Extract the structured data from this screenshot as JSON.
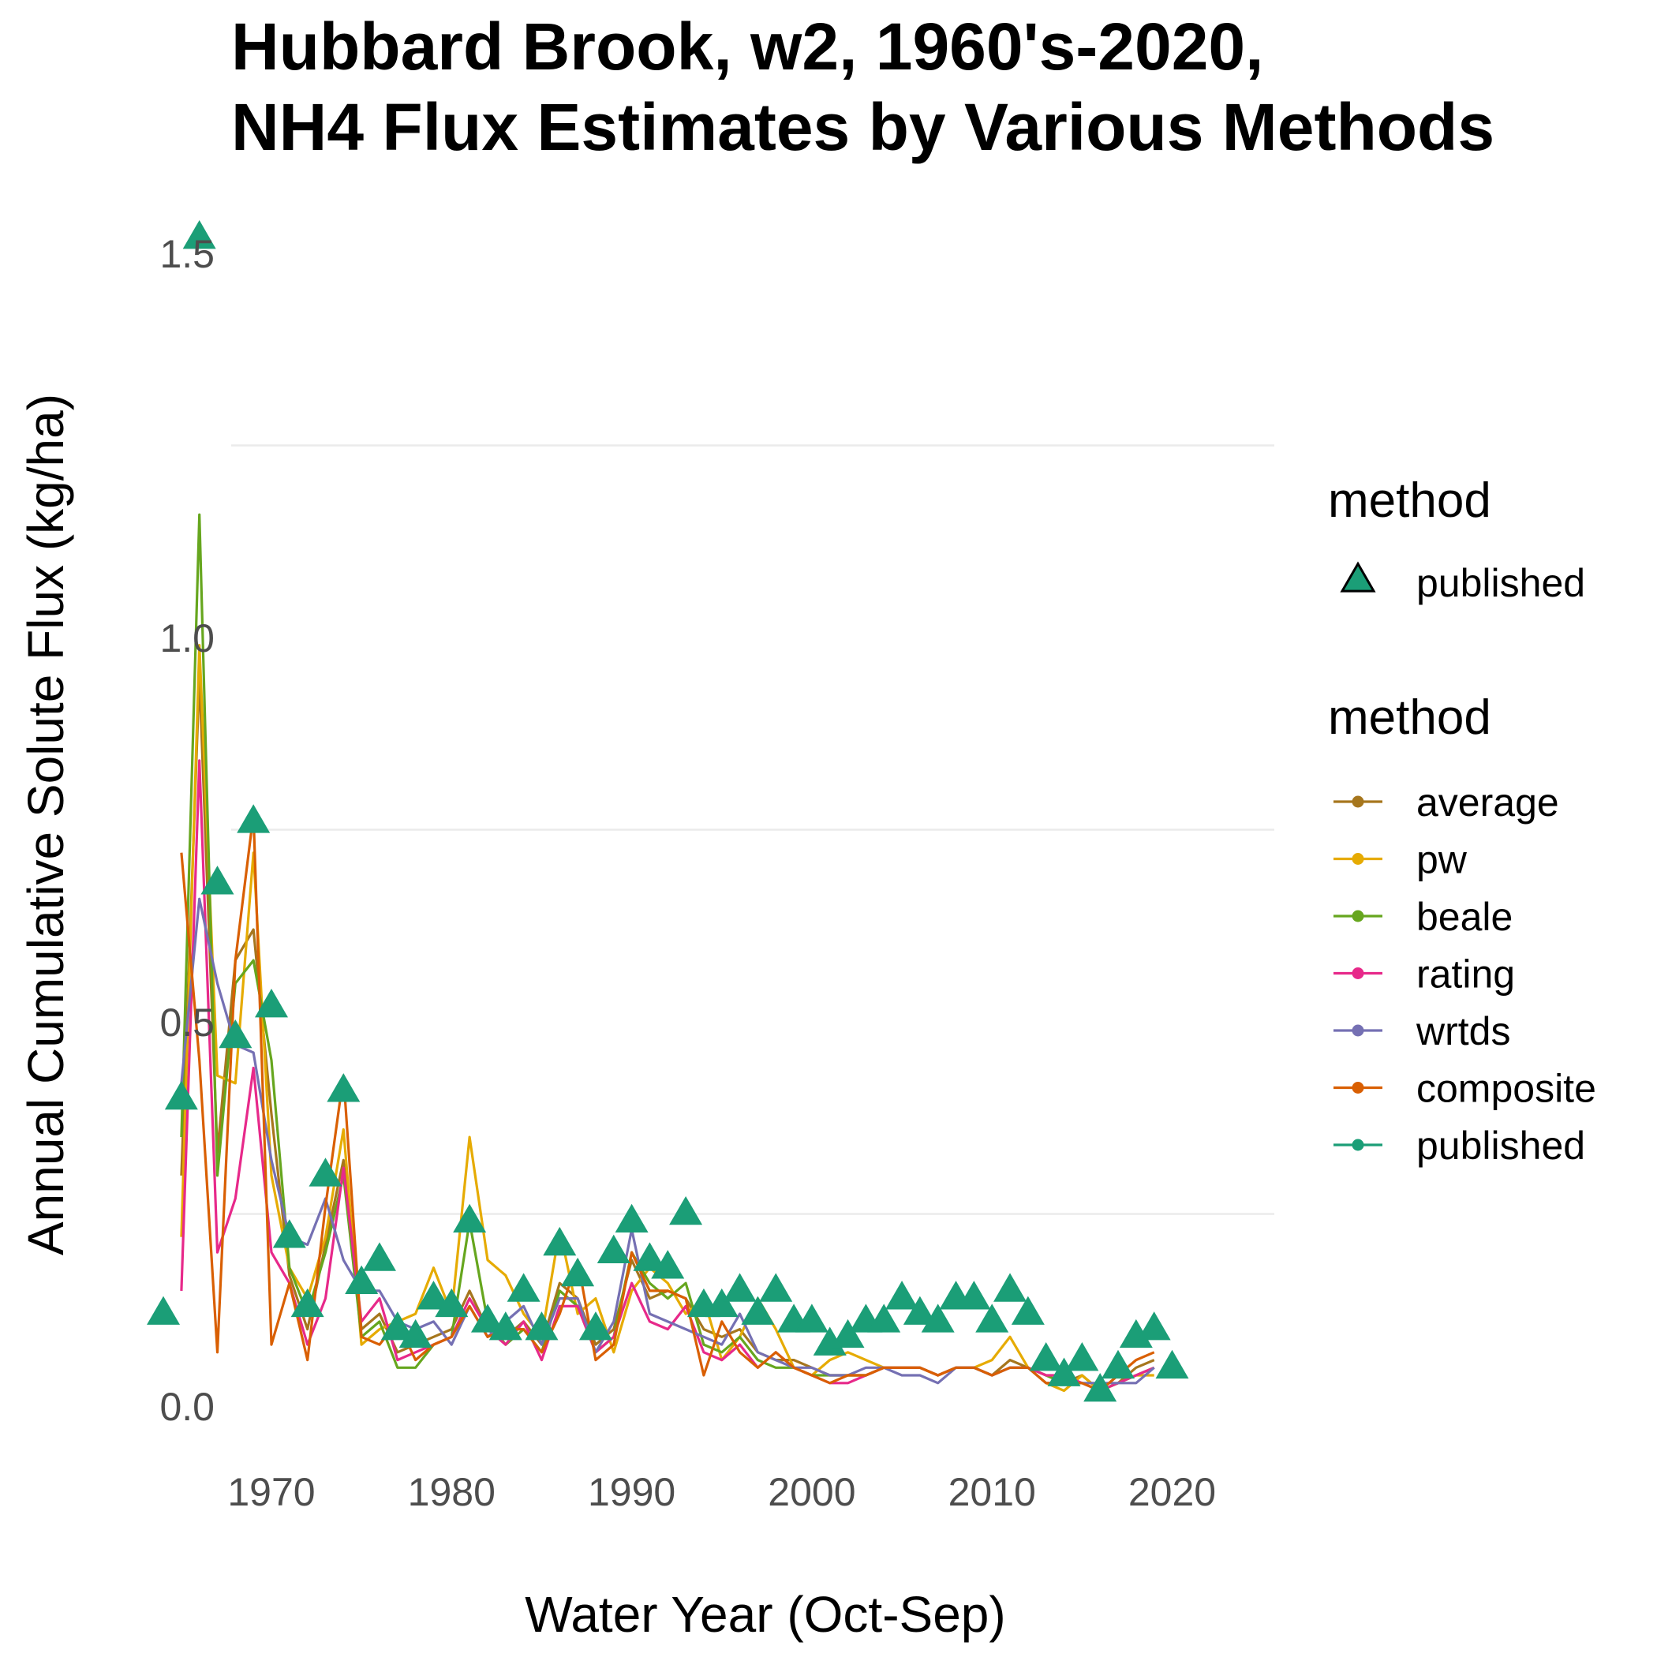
{
  "chart_data": {
    "type": "line",
    "title_lines": [
      "Hubbard Brook, w2, 1960's-2020,",
      "NH4 Flux Estimates by Various Methods"
    ],
    "xlabel": "Water Year (Oct-Sep)",
    "ylabel": "Annual Cumulative Solute Flux (kg/ha)",
    "xlim": [
      1963,
      2020
    ],
    "ylim": [
      0,
      1.55
    ],
    "x_ticks": [
      1970,
      1980,
      1990,
      2000,
      2010,
      2020
    ],
    "y_ticks": [
      0.0,
      0.5,
      1.0,
      1.5
    ],
    "y_tick_labels": [
      "0.0",
      "0.5",
      "1.0",
      "1.5"
    ],
    "grid": true,
    "legend_position": "right",
    "legend_points": {
      "title": "method",
      "entries": [
        {
          "label": "published",
          "shape": "triangle",
          "color": "#1b9e77"
        }
      ]
    },
    "legend_lines": {
      "title": "method",
      "entries": [
        {
          "label": "average",
          "color": "#a6761d"
        },
        {
          "label": "pw",
          "color": "#e6ab02"
        },
        {
          "label": "beale",
          "color": "#66a61e"
        },
        {
          "label": "rating",
          "color": "#e7298a"
        },
        {
          "label": "wrtds",
          "color": "#7570b3"
        },
        {
          "label": "composite",
          "color": "#d95f02"
        },
        {
          "label": "published",
          "color": "#1b9e77"
        }
      ]
    },
    "published_points": {
      "x": [
        1964,
        1965,
        1966,
        1967,
        1968,
        1969,
        1970,
        1971,
        1972,
        1973,
        1974,
        1975,
        1976,
        1977,
        1978,
        1979,
        1980,
        1981,
        1982,
        1983,
        1984,
        1985,
        1986,
        1987,
        1988,
        1989,
        1990,
        1991,
        1992,
        1993,
        1994,
        1995,
        1996,
        1997,
        1998,
        1999,
        2000,
        2001,
        2002,
        2003,
        2004,
        2005,
        2006,
        2007,
        2008,
        2009,
        2010,
        2011,
        2012,
        2013,
        2014,
        2015,
        2016,
        2017,
        2018,
        2019,
        2020
      ],
      "y": [
        0.12,
        0.4,
        1.52,
        0.68,
        0.48,
        0.76,
        0.52,
        0.22,
        0.13,
        0.3,
        0.41,
        0.16,
        0.19,
        0.1,
        0.09,
        0.14,
        0.13,
        0.24,
        0.11,
        0.1,
        0.15,
        0.1,
        0.21,
        0.17,
        0.1,
        0.2,
        0.24,
        0.19,
        0.18,
        0.25,
        0.13,
        0.13,
        0.15,
        0.12,
        0.15,
        0.11,
        0.11,
        0.08,
        0.09,
        0.11,
        0.11,
        0.14,
        0.12,
        0.11,
        0.14,
        0.14,
        0.11,
        0.15,
        0.12,
        0.06,
        0.04,
        0.06,
        0.02,
        0.05,
        0.09,
        0.1,
        0.05
      ]
    },
    "series": [
      {
        "name": "average",
        "color": "#a6761d",
        "x": [
          1965,
          1966,
          1967,
          1968,
          1969,
          1970,
          1971,
          1972,
          1973,
          1974,
          1975,
          1976,
          1977,
          1978,
          1979,
          1980,
          1981,
          1982,
          1983,
          1984,
          1985,
          1986,
          1987,
          1988,
          1989,
          1990,
          1991,
          1992,
          1993,
          1994,
          1995,
          1996,
          1997,
          1998,
          1999,
          2000,
          2001,
          2002,
          2003,
          2004,
          2005,
          2006,
          2007,
          2008,
          2009,
          2010,
          2011,
          2012,
          2013,
          2014,
          2015,
          2016,
          2017,
          2018,
          2019
        ],
        "y": [
          0.3,
          0.95,
          0.33,
          0.58,
          0.62,
          0.38,
          0.17,
          0.1,
          0.21,
          0.32,
          0.1,
          0.12,
          0.07,
          0.08,
          0.09,
          0.1,
          0.15,
          0.1,
          0.09,
          0.11,
          0.08,
          0.16,
          0.14,
          0.08,
          0.1,
          0.19,
          0.14,
          0.15,
          0.14,
          0.1,
          0.09,
          0.1,
          0.07,
          0.06,
          0.06,
          0.05,
          0.04,
          0.04,
          0.04,
          0.05,
          0.05,
          0.05,
          0.04,
          0.05,
          0.05,
          0.04,
          0.06,
          0.05,
          0.04,
          0.03,
          0.04,
          0.02,
          0.03,
          0.05,
          0.06
        ]
      },
      {
        "name": "pw",
        "color": "#e6ab02",
        "x": [
          1965,
          1966,
          1967,
          1968,
          1969,
          1970,
          1971,
          1972,
          1973,
          1974,
          1975,
          1976,
          1977,
          1978,
          1979,
          1980,
          1981,
          1982,
          1983,
          1984,
          1985,
          1986,
          1987,
          1988,
          1989,
          1990,
          1991,
          1992,
          1993,
          1994,
          1995,
          1996,
          1997,
          1998,
          1999,
          2000,
          2001,
          2002,
          2003,
          2004,
          2005,
          2006,
          2007,
          2008,
          2009,
          2010,
          2011,
          2012,
          2013,
          2014,
          2015,
          2016,
          2017,
          2018,
          2019
        ],
        "y": [
          0.22,
          0.99,
          0.43,
          0.42,
          0.72,
          0.3,
          0.18,
          0.14,
          0.22,
          0.36,
          0.08,
          0.1,
          0.11,
          0.12,
          0.18,
          0.12,
          0.35,
          0.19,
          0.17,
          0.12,
          0.09,
          0.23,
          0.12,
          0.14,
          0.07,
          0.15,
          0.18,
          0.16,
          0.12,
          0.14,
          0.06,
          0.09,
          0.14,
          0.1,
          0.05,
          0.04,
          0.06,
          0.07,
          0.06,
          0.05,
          0.05,
          0.05,
          0.04,
          0.05,
          0.05,
          0.06,
          0.09,
          0.05,
          0.03,
          0.02,
          0.04,
          0.02,
          0.03,
          0.04,
          0.04
        ]
      },
      {
        "name": "beale",
        "color": "#66a61e",
        "x": [
          1965,
          1966,
          1967,
          1968,
          1969,
          1970,
          1971,
          1972,
          1973,
          1974,
          1975,
          1976,
          1977,
          1978,
          1979,
          1980,
          1981,
          1982,
          1983,
          1984,
          1985,
          1986,
          1987,
          1988,
          1989,
          1990,
          1991,
          1992,
          1993,
          1994,
          1995,
          1996,
          1997,
          1998,
          1999,
          2000,
          2001,
          2002,
          2003,
          2004,
          2005,
          2006,
          2007,
          2008,
          2009,
          2010,
          2011,
          2012,
          2013,
          2014,
          2015,
          2016,
          2017,
          2018,
          2019
        ],
        "y": [
          0.35,
          1.16,
          0.3,
          0.55,
          0.58,
          0.45,
          0.18,
          0.12,
          0.2,
          0.3,
          0.09,
          0.11,
          0.05,
          0.05,
          0.08,
          0.09,
          0.24,
          0.11,
          0.08,
          0.1,
          0.07,
          0.15,
          0.13,
          0.07,
          0.09,
          0.2,
          0.16,
          0.14,
          0.16,
          0.08,
          0.07,
          0.09,
          0.06,
          0.05,
          0.05,
          0.04,
          0.04,
          0.04,
          0.04,
          0.05,
          0.05,
          0.05,
          0.04,
          0.05,
          0.05,
          0.04,
          0.05,
          0.05,
          0.04,
          0.03,
          0.03,
          0.02,
          0.03,
          0.04,
          0.05
        ]
      },
      {
        "name": "rating",
        "color": "#e7298a",
        "x": [
          1965,
          1966,
          1967,
          1968,
          1969,
          1970,
          1971,
          1972,
          1973,
          1974,
          1975,
          1976,
          1977,
          1978,
          1979,
          1980,
          1981,
          1982,
          1983,
          1984,
          1985,
          1986,
          1987,
          1988,
          1989,
          1990,
          1991,
          1992,
          1993,
          1994,
          1995,
          1996,
          1997,
          1998,
          1999,
          2000,
          2001,
          2002,
          2003,
          2004,
          2005,
          2006,
          2007,
          2008,
          2009,
          2010,
          2011,
          2012,
          2013,
          2014,
          2015,
          2016,
          2017,
          2018,
          2019
        ],
        "y": [
          0.15,
          0.84,
          0.2,
          0.27,
          0.44,
          0.2,
          0.16,
          0.08,
          0.14,
          0.31,
          0.11,
          0.14,
          0.06,
          0.07,
          0.08,
          0.09,
          0.14,
          0.1,
          0.08,
          0.11,
          0.06,
          0.13,
          0.13,
          0.07,
          0.09,
          0.16,
          0.11,
          0.1,
          0.13,
          0.07,
          0.06,
          0.08,
          0.05,
          0.07,
          0.05,
          0.04,
          0.03,
          0.03,
          0.04,
          0.05,
          0.05,
          0.05,
          0.04,
          0.05,
          0.05,
          0.04,
          0.05,
          0.05,
          0.04,
          0.04,
          0.03,
          0.02,
          0.03,
          0.04,
          0.05
        ]
      },
      {
        "name": "wrtds",
        "color": "#7570b3",
        "x": [
          1965,
          1966,
          1967,
          1968,
          1969,
          1970,
          1971,
          1972,
          1973,
          1974,
          1975,
          1976,
          1977,
          1978,
          1979,
          1980,
          1981,
          1982,
          1983,
          1984,
          1985,
          1986,
          1987,
          1988,
          1989,
          1990,
          1991,
          1992,
          1993,
          1994,
          1995,
          1996,
          1997,
          1998,
          1999,
          2000,
          2001,
          2002,
          2003,
          2004,
          2005,
          2006,
          2007,
          2008,
          2009,
          2010,
          2011,
          2012,
          2013,
          2014,
          2015,
          2016,
          2017,
          2018,
          2019
        ],
        "y": [
          0.42,
          0.66,
          0.55,
          0.47,
          0.46,
          0.32,
          0.22,
          0.21,
          0.27,
          0.19,
          0.15,
          0.15,
          0.11,
          0.1,
          0.11,
          0.08,
          0.13,
          0.09,
          0.11,
          0.13,
          0.08,
          0.14,
          0.14,
          0.07,
          0.11,
          0.23,
          0.12,
          0.11,
          0.1,
          0.09,
          0.08,
          0.12,
          0.07,
          0.06,
          0.05,
          0.05,
          0.04,
          0.04,
          0.05,
          0.05,
          0.04,
          0.04,
          0.03,
          0.05,
          0.05,
          0.04,
          0.05,
          0.05,
          0.03,
          0.03,
          0.03,
          0.03,
          0.03,
          0.03,
          0.05
        ]
      },
      {
        "name": "composite",
        "color": "#d95f02",
        "x": [
          1965,
          1966,
          1967,
          1968,
          1969,
          1970,
          1971,
          1972,
          1973,
          1974,
          1975,
          1976,
          1977,
          1978,
          1979,
          1980,
          1981,
          1982,
          1983,
          1984,
          1985,
          1986,
          1987,
          1988,
          1989,
          1990,
          1991,
          1992,
          1993,
          1994,
          1995,
          1996,
          1997,
          1998,
          1999,
          2000,
          2001,
          2002,
          2003,
          2004,
          2005,
          2006,
          2007,
          2008,
          2009,
          2010,
          2011,
          2012,
          2013,
          2014,
          2015,
          2016,
          2017,
          2018,
          2019
        ],
        "y": [
          0.72,
          0.45,
          0.07,
          0.58,
          0.77,
          0.08,
          0.16,
          0.06,
          0.26,
          0.43,
          0.09,
          0.08,
          0.11,
          0.06,
          0.08,
          0.09,
          0.13,
          0.09,
          0.1,
          0.1,
          0.07,
          0.12,
          0.19,
          0.06,
          0.08,
          0.2,
          0.15,
          0.15,
          0.14,
          0.04,
          0.11,
          0.07,
          0.05,
          0.07,
          0.05,
          0.04,
          0.03,
          0.04,
          0.04,
          0.05,
          0.05,
          0.05,
          0.04,
          0.05,
          0.05,
          0.04,
          0.05,
          0.05,
          0.03,
          0.03,
          0.03,
          0.02,
          0.04,
          0.06,
          0.07
        ]
      }
    ]
  }
}
